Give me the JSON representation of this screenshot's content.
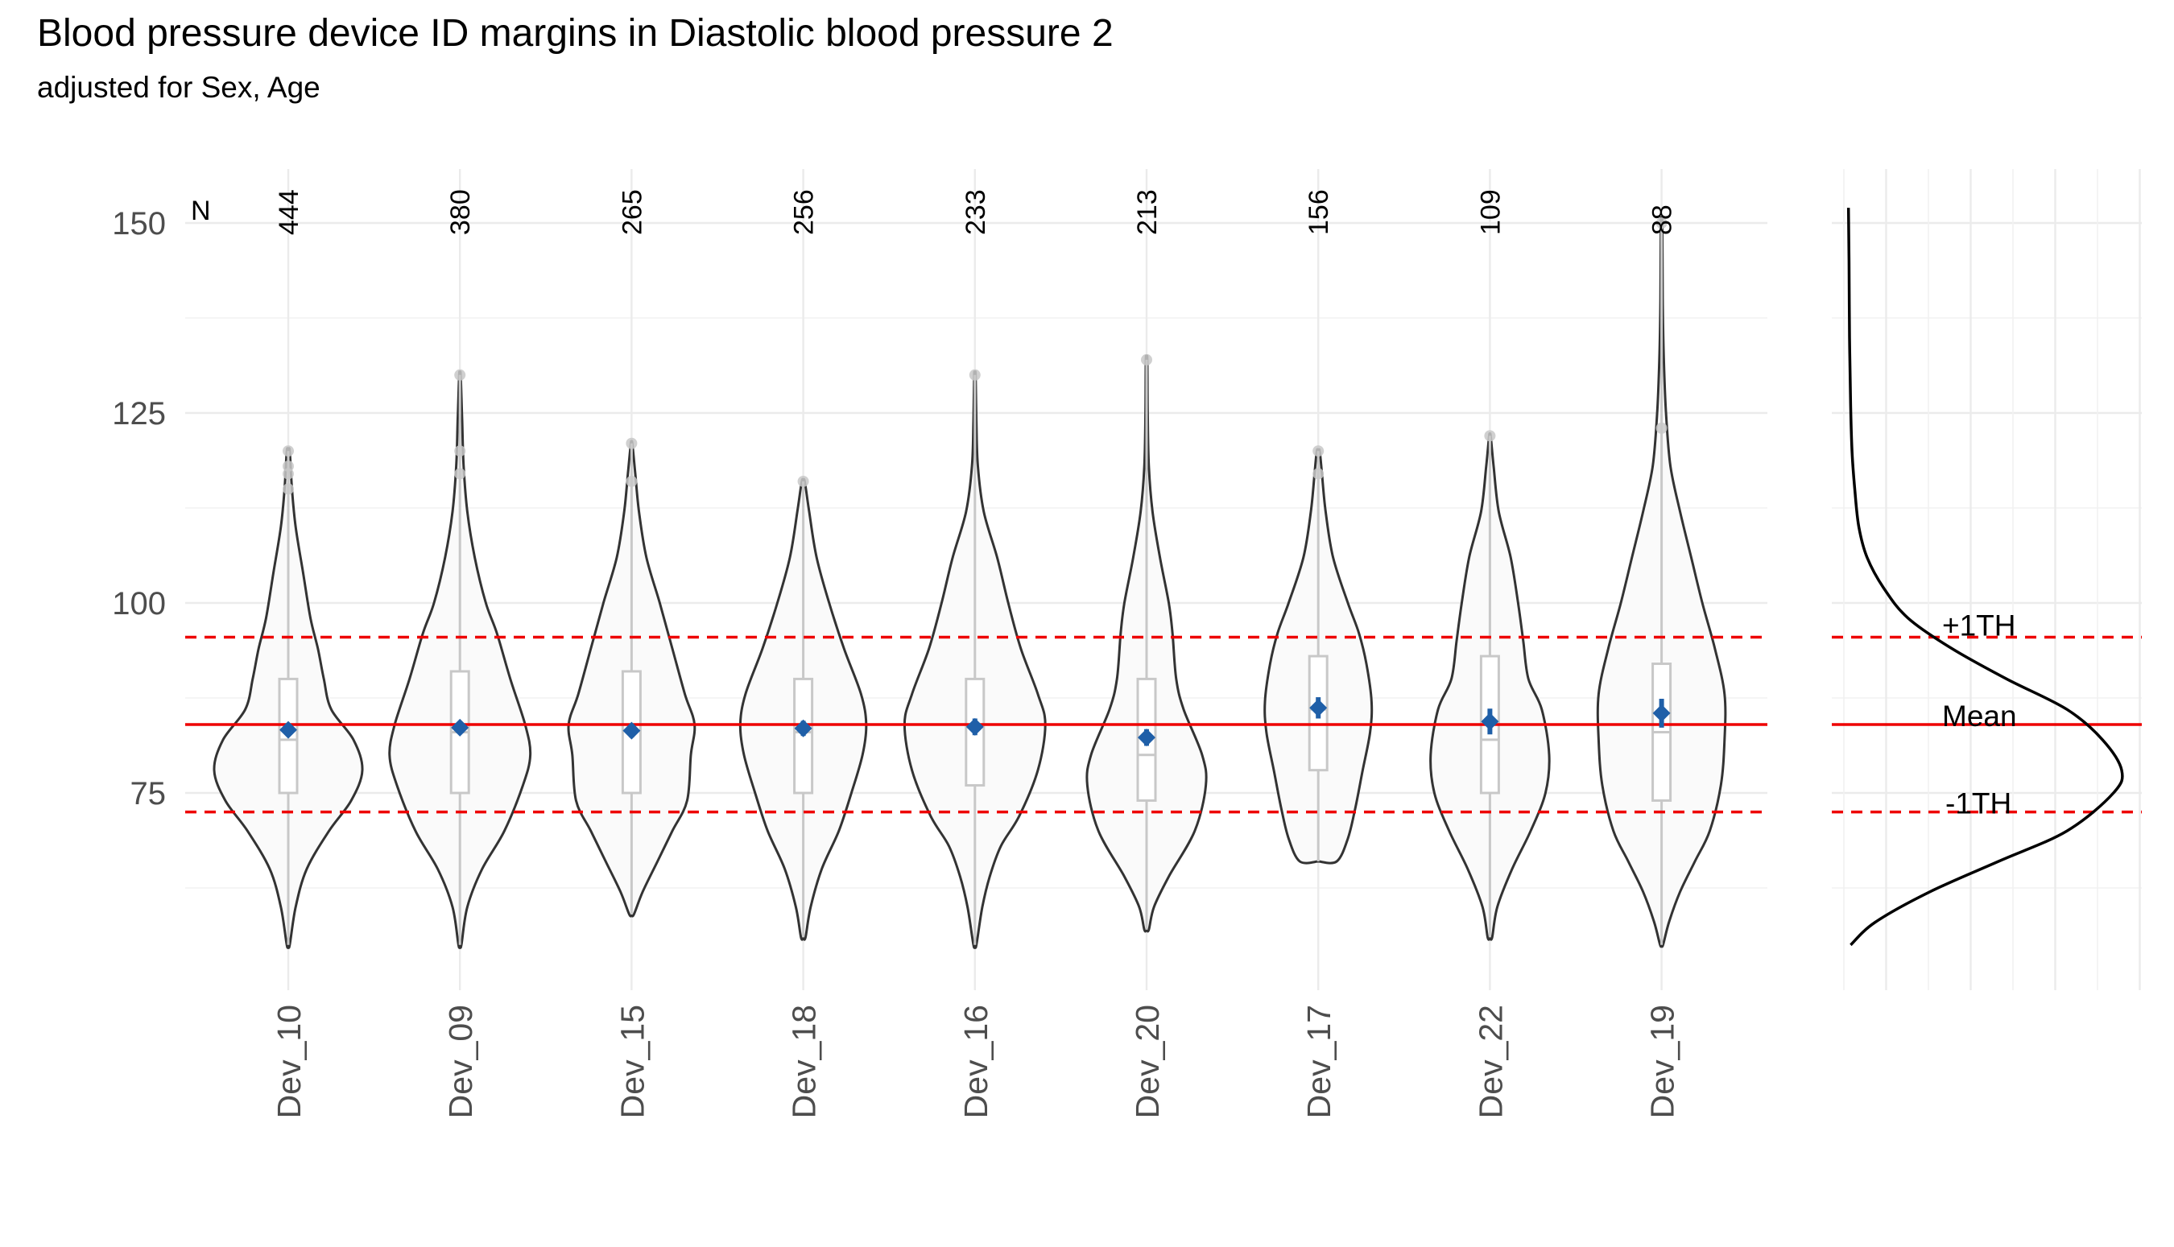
{
  "chart_data": {
    "type": "violin",
    "title": "Blood pressure device ID margins in Diastolic blood pressure 2",
    "subtitle": "adjusted for Sex, Age",
    "ylabel": "",
    "xlabel": "",
    "ylim": [
      52,
      157
    ],
    "y_ticks": [
      75,
      100,
      125,
      150
    ],
    "n_header": "N",
    "mean_line": 84,
    "plus_line": 95.5,
    "minus_line": 72.5,
    "ref_labels": {
      "plus": "+1TH",
      "mean": "Mean",
      "minus": "-1TH"
    },
    "colors": {
      "mean_line": "#ee0000",
      "margin_point": "#1f5fa8",
      "violin_fill": "#fafafa",
      "violin_stroke": "#333333",
      "box_stroke": "#c8c8c8",
      "outlier": "#c8c8c8"
    },
    "categories": [
      "Dev_10",
      "Dev_09",
      "Dev_15",
      "Dev_18",
      "Dev_16",
      "Dev_20",
      "Dev_17",
      "Dev_22",
      "Dev_19"
    ],
    "n": [
      "444",
      "380",
      "265",
      "256",
      "233",
      "213",
      "156",
      "109",
      "88"
    ],
    "devices": [
      {
        "name": "Dev_10",
        "n": 444,
        "min": 55,
        "max": 120,
        "q1": 75,
        "median": 82,
        "q3": 90,
        "margin": 83.3,
        "ci": [
          82.5,
          84.1
        ],
        "outliers": [
          115,
          117,
          118,
          120
        ],
        "density": [
          [
            55,
            0.02
          ],
          [
            60,
            0.1
          ],
          [
            65,
            0.25
          ],
          [
            70,
            0.55
          ],
          [
            74,
            0.85
          ],
          [
            78,
            1.0
          ],
          [
            82,
            0.88
          ],
          [
            86,
            0.58
          ],
          [
            90,
            0.48
          ],
          [
            94,
            0.4
          ],
          [
            98,
            0.3
          ],
          [
            104,
            0.2
          ],
          [
            110,
            0.1
          ],
          [
            115,
            0.05
          ],
          [
            120,
            0.02
          ]
        ]
      },
      {
        "name": "Dev_09",
        "n": 380,
        "min": 55,
        "max": 130,
        "q1": 75,
        "median": 83,
        "q3": 91,
        "margin": 83.6,
        "ci": [
          82.8,
          84.4
        ],
        "outliers": [
          117,
          120,
          130
        ],
        "density": [
          [
            55,
            0.02
          ],
          [
            60,
            0.1
          ],
          [
            65,
            0.3
          ],
          [
            70,
            0.6
          ],
          [
            76,
            0.85
          ],
          [
            80,
            0.95
          ],
          [
            84,
            0.88
          ],
          [
            90,
            0.68
          ],
          [
            96,
            0.5
          ],
          [
            100,
            0.35
          ],
          [
            106,
            0.2
          ],
          [
            112,
            0.1
          ],
          [
            118,
            0.05
          ],
          [
            124,
            0.03
          ],
          [
            130,
            0.01
          ]
        ]
      },
      {
        "name": "Dev_15",
        "n": 265,
        "min": 59,
        "max": 121,
        "q1": 75,
        "median": 84,
        "q3": 91,
        "margin": 83.2,
        "ci": [
          82.3,
          84.1
        ],
        "outliers": [
          116,
          121
        ],
        "density": [
          [
            59,
            0.03
          ],
          [
            62,
            0.15
          ],
          [
            66,
            0.35
          ],
          [
            70,
            0.55
          ],
          [
            74,
            0.75
          ],
          [
            80,
            0.8
          ],
          [
            84,
            0.85
          ],
          [
            88,
            0.72
          ],
          [
            94,
            0.55
          ],
          [
            100,
            0.38
          ],
          [
            106,
            0.2
          ],
          [
            112,
            0.1
          ],
          [
            117,
            0.05
          ],
          [
            121,
            0.01
          ]
        ]
      },
      {
        "name": "Dev_18",
        "n": 256,
        "min": 56,
        "max": 116,
        "q1": 75,
        "median": 83,
        "q3": 90,
        "margin": 83.5,
        "ci": [
          82.5,
          84.5
        ],
        "outliers": [
          116
        ],
        "density": [
          [
            56,
            0.03
          ],
          [
            60,
            0.1
          ],
          [
            65,
            0.25
          ],
          [
            70,
            0.48
          ],
          [
            75,
            0.65
          ],
          [
            80,
            0.8
          ],
          [
            84,
            0.85
          ],
          [
            88,
            0.78
          ],
          [
            94,
            0.55
          ],
          [
            100,
            0.35
          ],
          [
            106,
            0.18
          ],
          [
            112,
            0.08
          ],
          [
            116,
            0.02
          ]
        ]
      },
      {
        "name": "Dev_16",
        "n": 233,
        "min": 55,
        "max": 130,
        "q1": 76,
        "median": 84,
        "q3": 90,
        "margin": 83.7,
        "ci": [
          82.6,
          84.8
        ],
        "outliers": [
          130
        ],
        "density": [
          [
            55,
            0.02
          ],
          [
            60,
            0.1
          ],
          [
            64,
            0.2
          ],
          [
            68,
            0.35
          ],
          [
            72,
            0.6
          ],
          [
            78,
            0.85
          ],
          [
            84,
            0.95
          ],
          [
            88,
            0.85
          ],
          [
            94,
            0.62
          ],
          [
            100,
            0.45
          ],
          [
            106,
            0.3
          ],
          [
            112,
            0.12
          ],
          [
            118,
            0.04
          ],
          [
            124,
            0.02
          ],
          [
            130,
            0.01
          ]
        ]
      },
      {
        "name": "Dev_20",
        "n": 213,
        "min": 57,
        "max": 132,
        "q1": 74,
        "median": 80,
        "q3": 90,
        "margin": 82.3,
        "ci": [
          81.2,
          83.4
        ],
        "outliers": [
          132
        ],
        "density": [
          [
            57,
            0.03
          ],
          [
            60,
            0.1
          ],
          [
            64,
            0.3
          ],
          [
            70,
            0.65
          ],
          [
            76,
            0.8
          ],
          [
            80,
            0.75
          ],
          [
            86,
            0.5
          ],
          [
            90,
            0.4
          ],
          [
            96,
            0.35
          ],
          [
            100,
            0.3
          ],
          [
            106,
            0.18
          ],
          [
            112,
            0.08
          ],
          [
            118,
            0.03
          ],
          [
            125,
            0.015
          ],
          [
            132,
            0.01
          ]
        ]
      },
      {
        "name": "Dev_17",
        "n": 156,
        "min": 66,
        "max": 120,
        "q1": 78,
        "median": 86,
        "q3": 93,
        "margin": 86.2,
        "ci": [
          84.8,
          87.6
        ],
        "outliers": [
          117,
          120
        ],
        "density": [
          [
            66,
            0.25
          ],
          [
            69,
            0.4
          ],
          [
            73,
            0.5
          ],
          [
            78,
            0.6
          ],
          [
            83,
            0.7
          ],
          [
            87,
            0.72
          ],
          [
            92,
            0.65
          ],
          [
            96,
            0.55
          ],
          [
            100,
            0.4
          ],
          [
            106,
            0.2
          ],
          [
            112,
            0.1
          ],
          [
            117,
            0.05
          ],
          [
            120,
            0.02
          ]
        ]
      },
      {
        "name": "Dev_22",
        "n": 109,
        "min": 56,
        "max": 122,
        "q1": 75,
        "median": 82,
        "q3": 93,
        "margin": 84.4,
        "ci": [
          82.7,
          86.1
        ],
        "outliers": [
          122
        ],
        "density": [
          [
            56,
            0.03
          ],
          [
            60,
            0.1
          ],
          [
            65,
            0.3
          ],
          [
            70,
            0.55
          ],
          [
            75,
            0.75
          ],
          [
            80,
            0.8
          ],
          [
            86,
            0.7
          ],
          [
            90,
            0.52
          ],
          [
            95,
            0.45
          ],
          [
            100,
            0.38
          ],
          [
            106,
            0.28
          ],
          [
            112,
            0.12
          ],
          [
            118,
            0.05
          ],
          [
            122,
            0.01
          ]
        ]
      },
      {
        "name": "Dev_19",
        "n": 88,
        "min": 55,
        "max": 150,
        "q1": 74,
        "median": 83,
        "q3": 92,
        "margin": 85.5,
        "ci": [
          83.6,
          87.4
        ],
        "outliers": [
          123,
          150
        ],
        "density": [
          [
            55,
            0.02
          ],
          [
            58,
            0.1
          ],
          [
            62,
            0.25
          ],
          [
            66,
            0.45
          ],
          [
            70,
            0.65
          ],
          [
            76,
            0.8
          ],
          [
            82,
            0.85
          ],
          [
            88,
            0.85
          ],
          [
            94,
            0.72
          ],
          [
            100,
            0.55
          ],
          [
            106,
            0.4
          ],
          [
            112,
            0.25
          ],
          [
            118,
            0.12
          ],
          [
            125,
            0.06
          ],
          [
            132,
            0.03
          ],
          [
            140,
            0.015
          ],
          [
            150,
            0.01
          ]
        ]
      }
    ],
    "overall_density": [
      [
        55,
        0.01
      ],
      [
        58,
        0.1
      ],
      [
        62,
        0.3
      ],
      [
        66,
        0.55
      ],
      [
        70,
        0.8
      ],
      [
        75,
        0.97
      ],
      [
        78,
        1.0
      ],
      [
        82,
        0.93
      ],
      [
        86,
        0.8
      ],
      [
        90,
        0.58
      ],
      [
        94,
        0.38
      ],
      [
        98,
        0.22
      ],
      [
        102,
        0.13
      ],
      [
        106,
        0.07
      ],
      [
        110,
        0.04
      ],
      [
        115,
        0.025
      ],
      [
        120,
        0.015
      ],
      [
        126,
        0.01
      ],
      [
        135,
        0.006
      ],
      [
        145,
        0.004
      ],
      [
        152,
        0.002
      ]
    ]
  }
}
